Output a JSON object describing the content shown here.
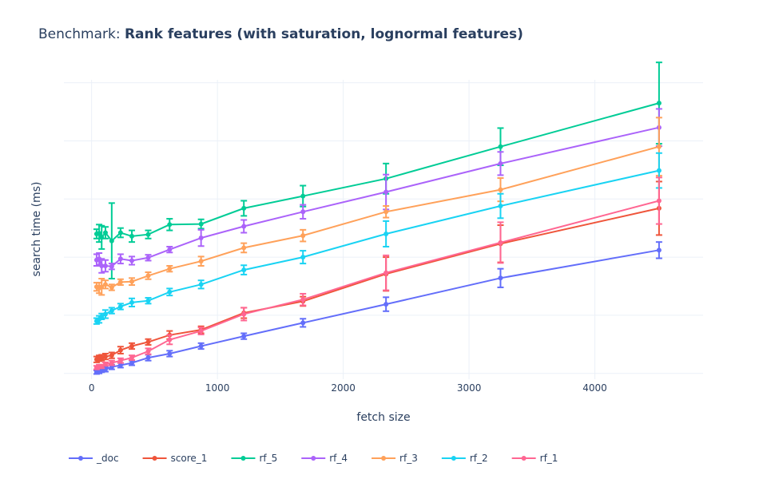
{
  "title": {
    "prefix": "Benchmark: ",
    "main": "Rank features (with saturation, lognormal features)"
  },
  "chart_data": {
    "type": "line",
    "xlabel": "fetch size",
    "ylabel": "search time (ms)",
    "xlim": [
      -220,
      4860
    ],
    "ylim": [
      -0.1,
      5.05
    ],
    "x_ticks": [
      0,
      1000,
      2000,
      3000,
      4000
    ],
    "x_tick_labels": [
      "0",
      "1000",
      "2000",
      "3000",
      "4000"
    ],
    "y_grid": [
      0,
      1,
      2,
      3,
      4,
      5
    ],
    "grid": true,
    "legend_position": "bottom",
    "x": [
      40,
      60,
      80,
      110,
      160,
      230,
      320,
      450,
      620,
      870,
      1210,
      1680,
      2340,
      3250,
      4510
    ],
    "series": [
      {
        "name": "_doc",
        "color": "#636efa",
        "values": [
          0.02,
          0.03,
          0.05,
          0.07,
          0.11,
          0.14,
          0.18,
          0.27,
          0.34,
          0.47,
          0.64,
          0.87,
          1.19,
          1.64,
          2.12
        ],
        "errors": [
          0.03,
          0.03,
          0.03,
          0.04,
          0.04,
          0.04,
          0.04,
          0.05,
          0.05,
          0.05,
          0.05,
          0.07,
          0.12,
          0.16,
          0.14
        ]
      },
      {
        "name": "score_1",
        "color": "#ef553b",
        "values": [
          0.24,
          0.26,
          0.27,
          0.29,
          0.31,
          0.4,
          0.47,
          0.54,
          0.66,
          0.75,
          1.04,
          1.24,
          1.71,
          2.23,
          2.84
        ],
        "errors": [
          0.05,
          0.05,
          0.05,
          0.05,
          0.05,
          0.06,
          0.05,
          0.05,
          0.07,
          0.06,
          0.09,
          0.08,
          0.29,
          0.32,
          0.46
        ]
      },
      {
        "name": "rf_5",
        "color": "#00cc96",
        "values": [
          2.4,
          2.41,
          2.34,
          2.42,
          2.28,
          2.42,
          2.36,
          2.39,
          2.56,
          2.57,
          2.84,
          3.05,
          3.35,
          3.9,
          4.65
        ],
        "errors": [
          0.08,
          0.15,
          0.2,
          0.1,
          0.65,
          0.08,
          0.1,
          0.07,
          0.1,
          0.08,
          0.13,
          0.18,
          0.26,
          0.32,
          0.7
        ]
      },
      {
        "name": "rf_4",
        "color": "#ab63fa",
        "values": [
          1.95,
          1.97,
          1.85,
          1.85,
          1.84,
          1.97,
          1.94,
          1.99,
          2.13,
          2.33,
          2.53,
          2.78,
          3.12,
          3.61,
          4.23
        ],
        "errors": [
          0.1,
          0.1,
          0.12,
          0.1,
          0.05,
          0.08,
          0.07,
          0.05,
          0.05,
          0.14,
          0.11,
          0.12,
          0.3,
          0.2,
          0.32
        ]
      },
      {
        "name": "rf_3",
        "color": "#ffa15a",
        "values": [
          1.49,
          1.47,
          1.49,
          1.53,
          1.48,
          1.57,
          1.58,
          1.68,
          1.8,
          1.93,
          2.16,
          2.37,
          2.78,
          3.16,
          3.9
        ],
        "errors": [
          0.07,
          0.09,
          0.14,
          0.07,
          0.05,
          0.05,
          0.06,
          0.06,
          0.05,
          0.08,
          0.08,
          0.1,
          0.1,
          0.2,
          0.5
        ]
      },
      {
        "name": "rf_2",
        "color": "#19d3f3",
        "values": [
          0.9,
          0.93,
          0.98,
          1.02,
          1.08,
          1.15,
          1.22,
          1.25,
          1.4,
          1.53,
          1.78,
          2.0,
          2.4,
          2.88,
          3.49
        ],
        "errors": [
          0.05,
          0.06,
          0.05,
          0.07,
          0.05,
          0.05,
          0.07,
          0.05,
          0.06,
          0.07,
          0.08,
          0.11,
          0.22,
          0.21,
          0.3
        ]
      },
      {
        "name": "rf_1",
        "color": "#ff6692",
        "values": [
          0.1,
          0.12,
          0.12,
          0.16,
          0.18,
          0.22,
          0.27,
          0.38,
          0.58,
          0.73,
          1.02,
          1.27,
          1.73,
          2.25,
          2.97
        ],
        "errors": [
          0.03,
          0.03,
          0.03,
          0.03,
          0.04,
          0.04,
          0.04,
          0.05,
          0.08,
          0.06,
          0.11,
          0.1,
          0.3,
          0.35,
          0.4
        ]
      }
    ]
  }
}
